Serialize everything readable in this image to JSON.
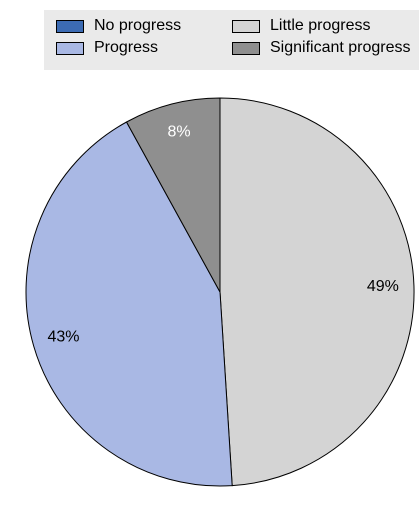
{
  "legend": {
    "items": [
      {
        "label": "No progress",
        "color": "#3c6bb3"
      },
      {
        "label": "Little progress",
        "color": "#d4d4d4"
      },
      {
        "label": "Progress",
        "color": "#a9b8e4"
      },
      {
        "label": "Significant progress",
        "color": "#8f8f8f"
      }
    ]
  },
  "chart_data": {
    "type": "pie",
    "title": "",
    "legend_position": "top",
    "slices": [
      {
        "name": "Little progress",
        "value": 49,
        "label": "49%",
        "color": "#d4d4d4",
        "label_color": "#000000"
      },
      {
        "name": "Progress",
        "value": 43,
        "label": "43%",
        "color": "#a9b8e4",
        "label_color": "#000000"
      },
      {
        "name": "Significant progress",
        "value": 8,
        "label": "8%",
        "color": "#8f8f8f",
        "label_color": "#ffffff"
      },
      {
        "name": "No progress",
        "value": 0,
        "label": "",
        "color": "#3c6bb3",
        "label_color": "#000000"
      }
    ]
  }
}
